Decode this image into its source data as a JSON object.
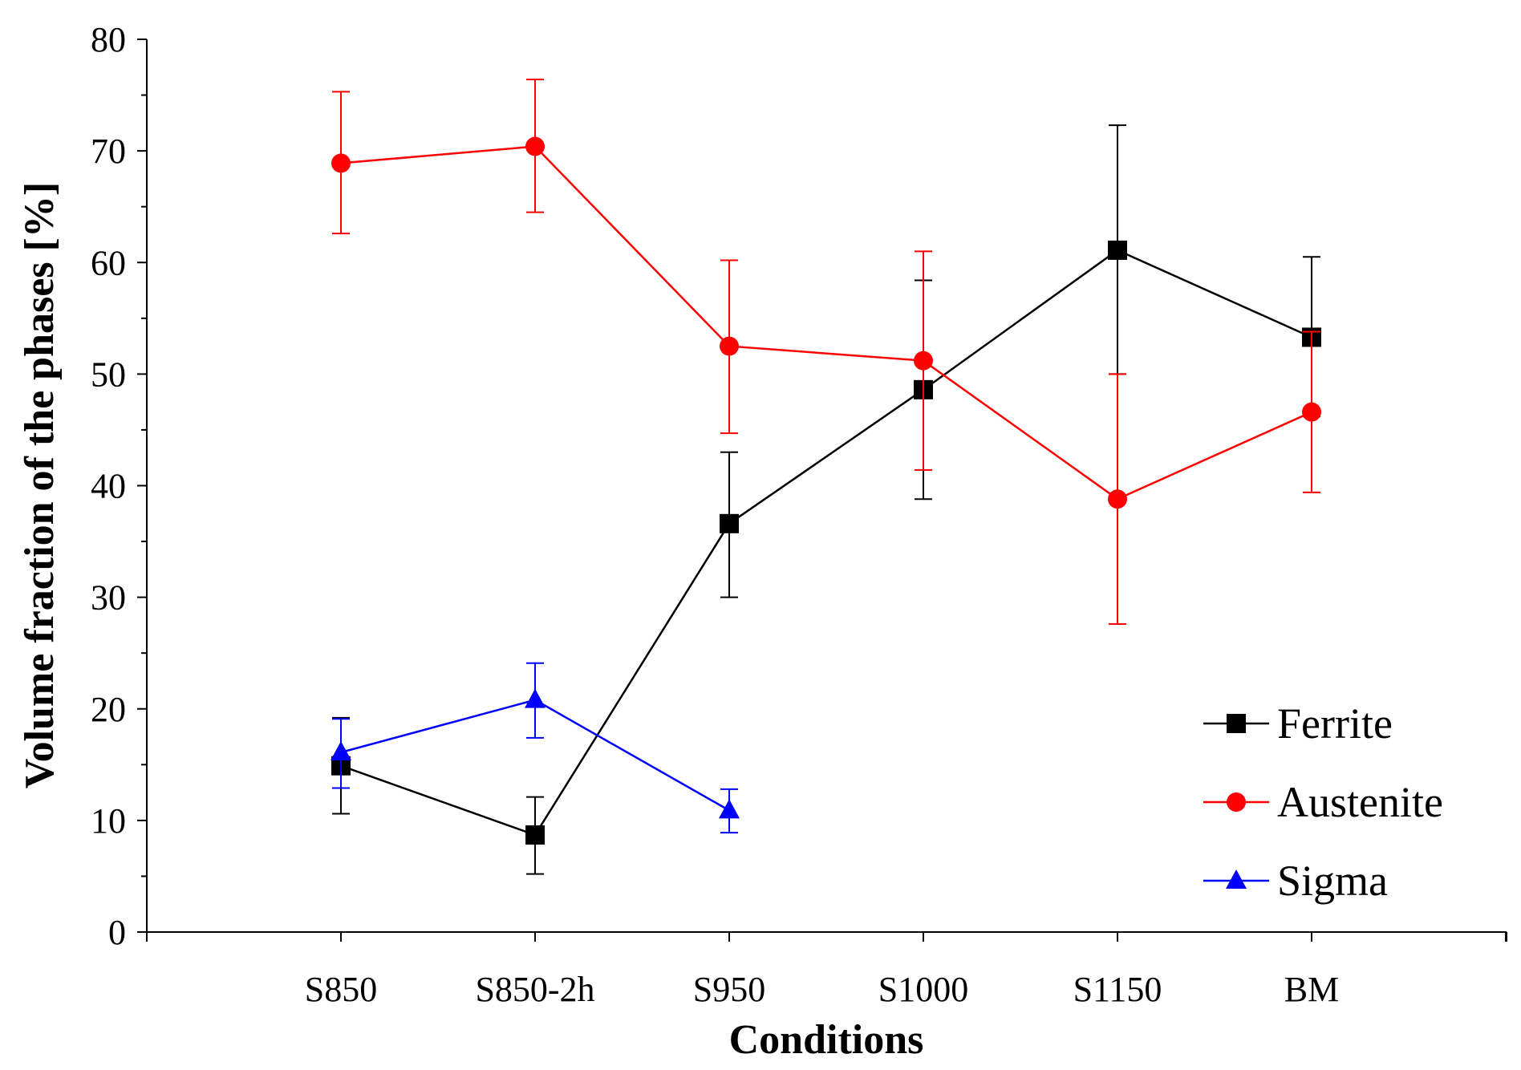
{
  "chart_data": {
    "type": "line",
    "title": "",
    "xlabel": "Conditions",
    "ylabel": "Volume fraction of the phases [%]",
    "ylim": [
      0,
      80
    ],
    "yticks": [
      0,
      10,
      20,
      30,
      40,
      50,
      60,
      70,
      80
    ],
    "categories": [
      "S850",
      "S850-2h",
      "S950",
      "S1000",
      "S1150",
      "BM"
    ],
    "grid": false,
    "legend_position": "bottom-right",
    "series": [
      {
        "name": "Ferrite",
        "color": "#000000",
        "marker": "square",
        "values": [
          14.9,
          8.7,
          36.6,
          48.6,
          61.1,
          53.3
        ],
        "err_low": [
          10.6,
          5.2,
          30.0,
          38.8,
          50.0,
          46.2
        ],
        "err_high": [
          19.2,
          12.1,
          43.0,
          58.4,
          72.3,
          60.5
        ]
      },
      {
        "name": "Austenite",
        "color": "#ff0000",
        "marker": "circle",
        "values": [
          68.9,
          70.4,
          52.5,
          51.2,
          38.8,
          46.6
        ],
        "err_low": [
          62.6,
          64.5,
          44.7,
          41.4,
          27.6,
          39.4
        ],
        "err_high": [
          75.3,
          76.4,
          60.2,
          61.0,
          50.0,
          53.8
        ]
      },
      {
        "name": "Sigma",
        "color": "#0000ff",
        "marker": "triangle",
        "values": [
          16.1,
          20.8,
          10.9,
          null,
          null,
          null
        ],
        "err_low": [
          12.9,
          17.4,
          8.9,
          null,
          null,
          null
        ],
        "err_high": [
          19.1,
          24.1,
          12.8,
          null,
          null,
          null
        ]
      }
    ]
  }
}
